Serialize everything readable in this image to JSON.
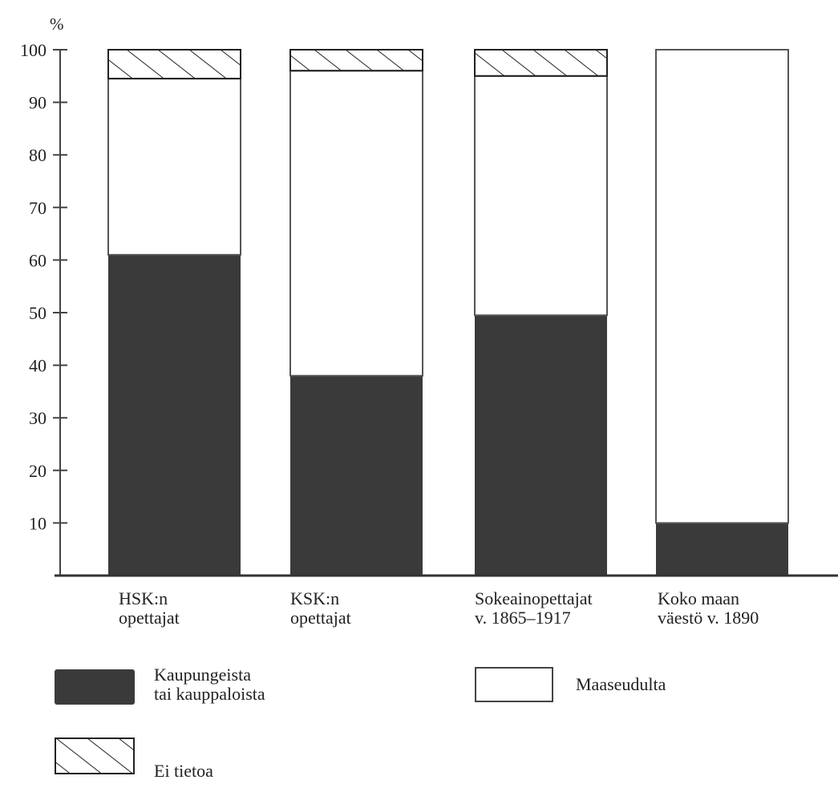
{
  "chart_data": {
    "type": "bar",
    "stacked": true,
    "title": "",
    "xlabel": "",
    "ylabel": "%",
    "ylim": [
      0,
      100
    ],
    "yticks": [
      10,
      20,
      30,
      40,
      50,
      60,
      70,
      80,
      90,
      100
    ],
    "grid": false,
    "categories": [
      "HSK:n\nopettajat",
      "KSK:n\nopettajat",
      "Sokeainopettajat\nv. 1865–1917",
      "Koko maan\nväestö v. 1890"
    ],
    "series": [
      {
        "name": "Kaupungeista\ntai kauppaloista",
        "values": [
          61,
          38,
          49.5,
          10
        ],
        "color": "#3a3a3a",
        "pattern": "solid"
      },
      {
        "name": "Maaseudulta",
        "values": [
          33.5,
          58,
          45.5,
          90
        ],
        "color": "#ffffff",
        "pattern": "outline"
      },
      {
        "name": "Ei tietoa",
        "values": [
          5.5,
          4,
          5,
          0
        ],
        "color": "#ffffff",
        "pattern": "hatched"
      }
    ],
    "legend_placement": "bottom"
  }
}
